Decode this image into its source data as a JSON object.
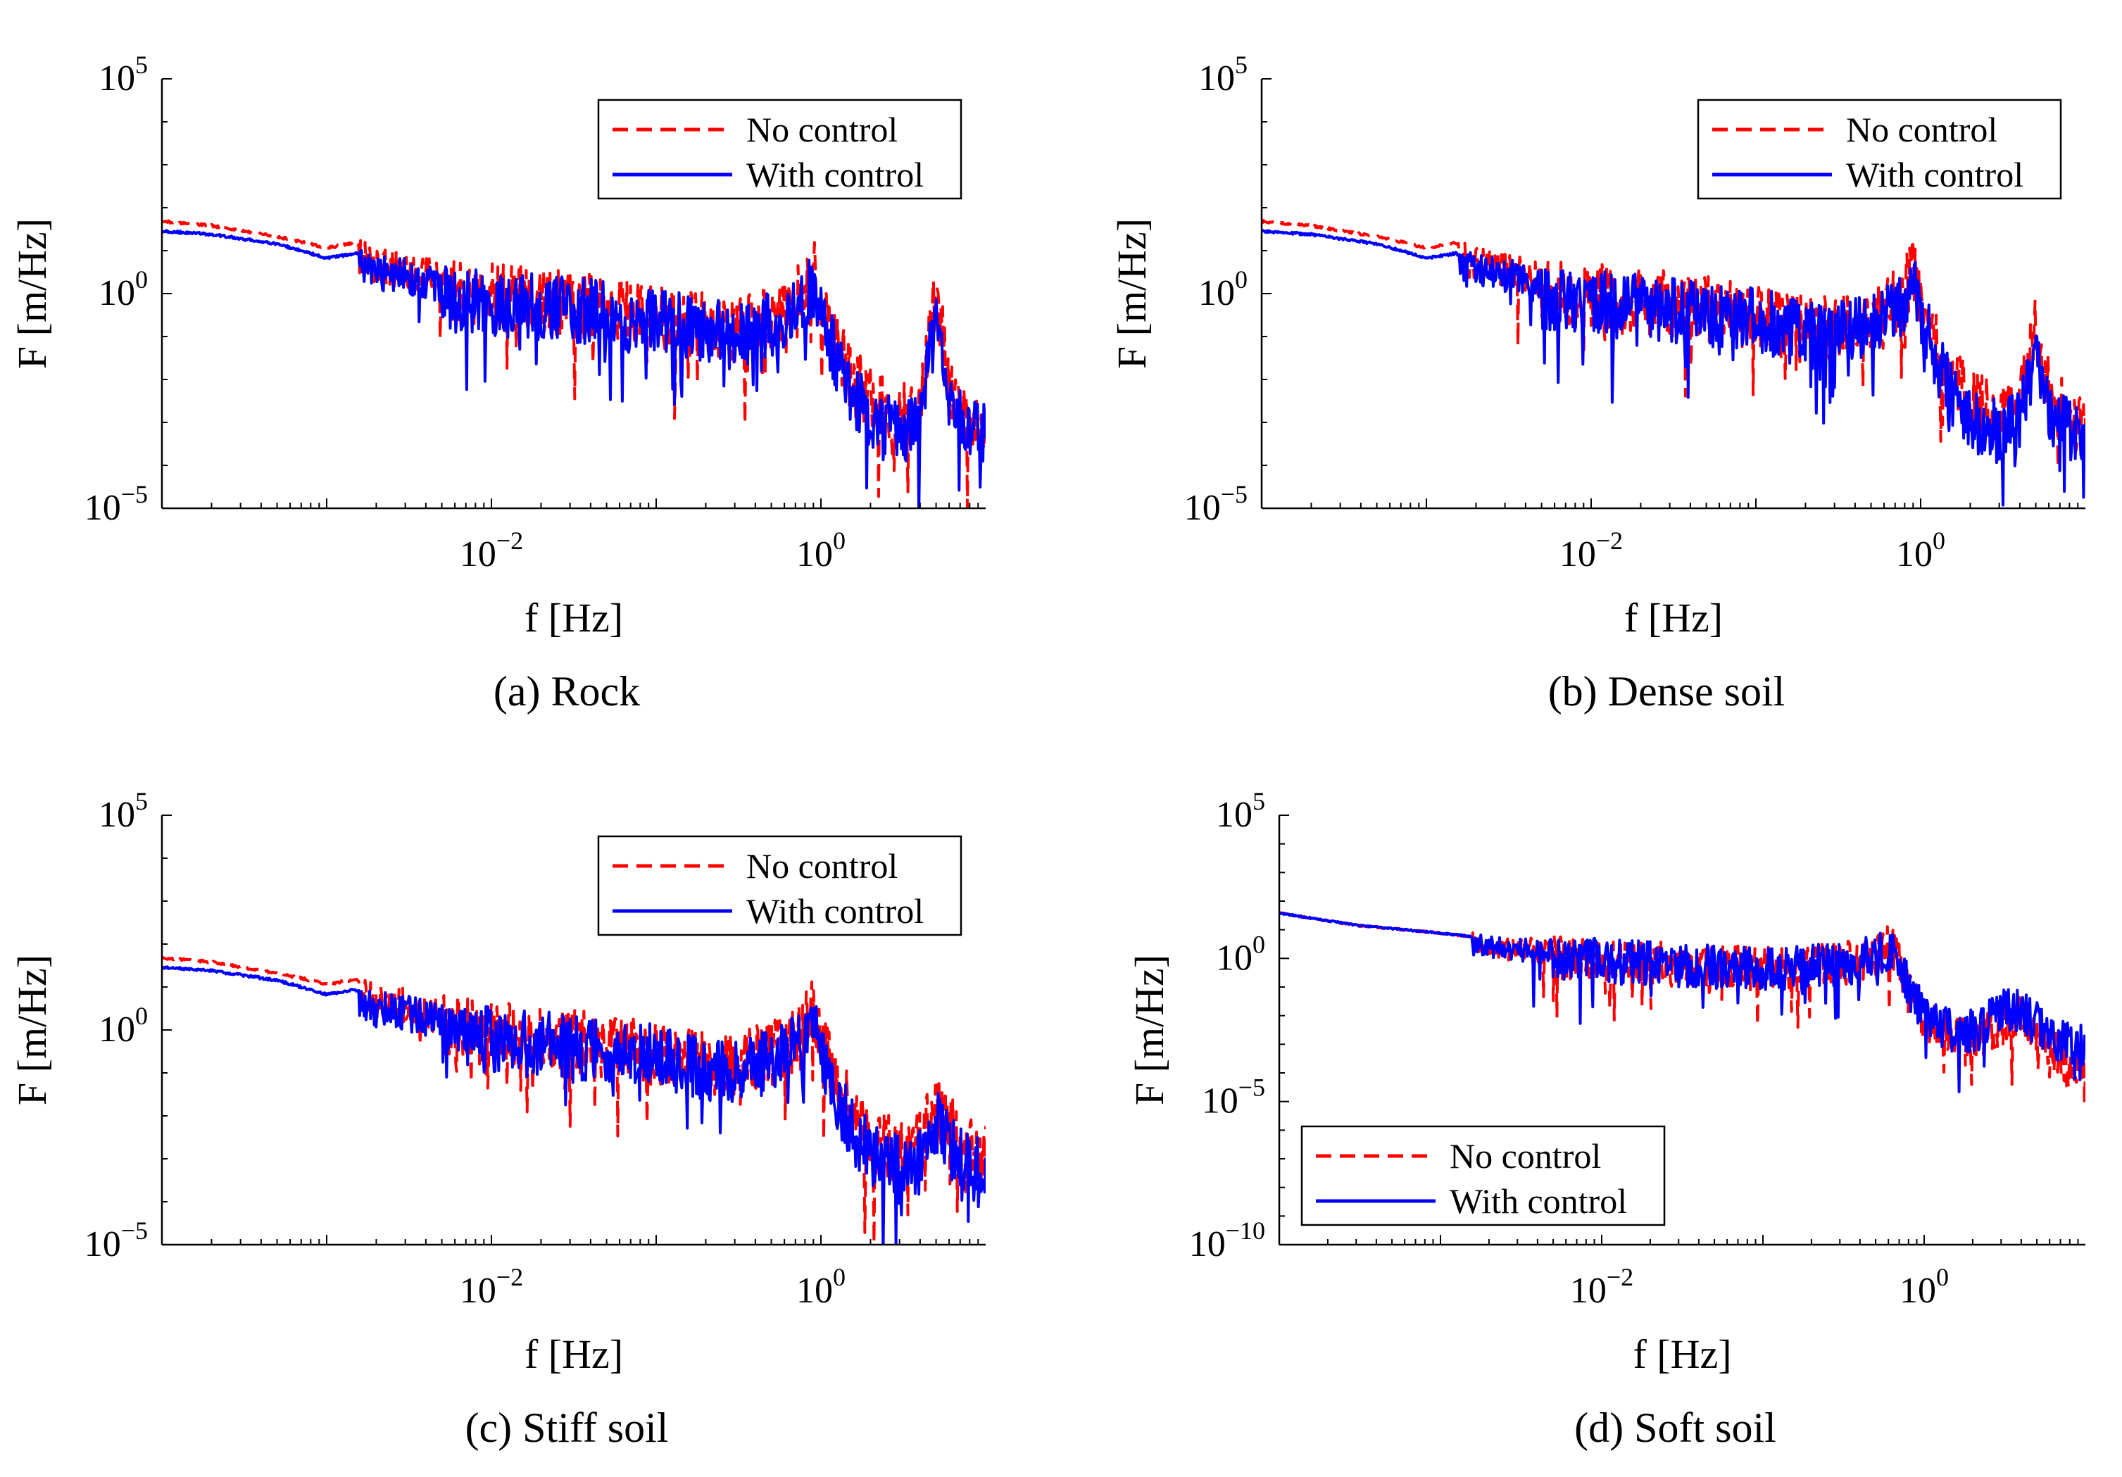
{
  "figure": {
    "panels": [
      {
        "caption": "(a) Rock"
      },
      {
        "caption": "(b) Dense soil"
      },
      {
        "caption": "(c) Stiff soil"
      },
      {
        "caption": "(d) Soft soil"
      }
    ]
  },
  "colors": {
    "no_control": "#ff0000",
    "with_control": "#0000ff",
    "axis": "#000000"
  },
  "chart_data": [
    {
      "type": "line",
      "title": "(a) Rock",
      "xlabel": "f [Hz]",
      "ylabel": "F [m/Hz]",
      "xscale": "log",
      "yscale": "log",
      "xlim": [
        0.0001,
        10
      ],
      "ylim": [
        1e-05,
        100000
      ],
      "xticks": [
        {
          "exp": "-2",
          "value": 0.01
        },
        {
          "exp": "0",
          "value": 1
        }
      ],
      "yticks": [
        {
          "exp": "-5",
          "value": 1e-05
        },
        {
          "exp": "0",
          "value": 1
        },
        {
          "exp": "5",
          "value": 100000
        }
      ],
      "legend": {
        "position": "top-right",
        "entries": [
          "No control",
          "With control"
        ]
      },
      "series": [
        {
          "name": "No control",
          "style": "dashed",
          "x": [
            0.0001,
            0.0002,
            0.0005,
            0.0008,
            0.001,
            0.0015,
            0.002,
            0.003,
            0.005,
            0.01,
            0.03,
            0.1,
            0.3,
            0.6,
            0.8,
            0.9,
            1.0,
            1.2,
            1.5,
            2,
            3,
            4,
            5,
            6,
            8,
            10
          ],
          "y": [
            50,
            40,
            22,
            15,
            12,
            16,
            9,
            7,
            4,
            3,
            2,
            1.0,
            0.5,
            1.2,
            4,
            12,
            2,
            0.3,
            0.05,
            0.01,
            0.005,
            0.008,
            5,
            0.02,
            0.005,
            0.004
          ]
        },
        {
          "name": "With control",
          "style": "solid",
          "x": [
            0.0001,
            0.0002,
            0.0005,
            0.0008,
            0.001,
            0.0015,
            0.002,
            0.003,
            0.005,
            0.01,
            0.03,
            0.1,
            0.3,
            0.6,
            0.8,
            0.9,
            1.0,
            1.2,
            1.5,
            2,
            3,
            4,
            5,
            6,
            8,
            10
          ],
          "y": [
            30,
            25,
            15,
            9,
            7,
            9,
            6,
            5,
            3,
            2,
            1.5,
            0.8,
            0.35,
            0.8,
            2.5,
            6,
            1.2,
            0.15,
            0.02,
            0.004,
            0.002,
            0.003,
            1.5,
            0.006,
            0.002,
            0.002
          ]
        }
      ]
    },
    {
      "type": "line",
      "title": "(b) Dense soil",
      "xlabel": "f [Hz]",
      "ylabel": "F [m/Hz]",
      "xscale": "log",
      "yscale": "log",
      "xlim": [
        0.0001,
        10
      ],
      "ylim": [
        1e-05,
        100000
      ],
      "xticks": [
        {
          "exp": "-2",
          "value": 0.01
        },
        {
          "exp": "0",
          "value": 1
        }
      ],
      "yticks": [
        {
          "exp": "-5",
          "value": 1e-05
        },
        {
          "exp": "0",
          "value": 1
        },
        {
          "exp": "5",
          "value": 100000
        }
      ],
      "legend": {
        "position": "top-right",
        "entries": [
          "No control",
          "With control"
        ]
      },
      "series": [
        {
          "name": "No control",
          "style": "dashed",
          "x": [
            0.0001,
            0.0002,
            0.0005,
            0.0008,
            0.001,
            0.0015,
            0.002,
            0.003,
            0.005,
            0.01,
            0.03,
            0.1,
            0.3,
            0.6,
            0.8,
            0.9,
            1.0,
            1.2,
            1.5,
            2,
            3,
            4,
            5,
            6,
            8,
            10
          ],
          "y": [
            50,
            40,
            22,
            15,
            12,
            16,
            9,
            7,
            4,
            3,
            2,
            1.0,
            0.5,
            1.2,
            4,
            12,
            2,
            0.3,
            0.05,
            0.01,
            0.005,
            0.008,
            0.5,
            0.02,
            0.005,
            0.004
          ]
        },
        {
          "name": "With control",
          "style": "solid",
          "x": [
            0.0001,
            0.0002,
            0.0005,
            0.0008,
            0.001,
            0.0015,
            0.002,
            0.003,
            0.005,
            0.01,
            0.03,
            0.1,
            0.3,
            0.6,
            0.8,
            0.9,
            1.0,
            1.2,
            1.5,
            2,
            3,
            4,
            5,
            6,
            8,
            10
          ],
          "y": [
            30,
            25,
            15,
            9,
            7,
            9,
            6,
            5,
            3,
            2,
            1.5,
            0.8,
            0.35,
            0.8,
            2.5,
            6,
            1.2,
            0.15,
            0.02,
            0.004,
            0.002,
            0.003,
            0.2,
            0.006,
            0.002,
            0.002
          ]
        }
      ]
    },
    {
      "type": "line",
      "title": "(c) Stiff soil",
      "xlabel": "f [Hz]",
      "ylabel": "F [m/Hz]",
      "xscale": "log",
      "yscale": "log",
      "xlim": [
        0.0001,
        10
      ],
      "ylim": [
        1e-05,
        100000
      ],
      "xticks": [
        {
          "exp": "-2",
          "value": 0.01
        },
        {
          "exp": "0",
          "value": 1
        }
      ],
      "yticks": [
        {
          "exp": "-5",
          "value": 1e-05
        },
        {
          "exp": "0",
          "value": 1
        },
        {
          "exp": "5",
          "value": 100000
        }
      ],
      "legend": {
        "position": "top-right",
        "entries": [
          "No control",
          "With control"
        ]
      },
      "series": [
        {
          "name": "No control",
          "style": "dashed",
          "x": [
            0.0001,
            0.0002,
            0.0005,
            0.0008,
            0.001,
            0.0015,
            0.002,
            0.003,
            0.005,
            0.01,
            0.03,
            0.1,
            0.3,
            0.6,
            0.8,
            0.9,
            1.0,
            1.2,
            1.5,
            2,
            3,
            4,
            5,
            6,
            8,
            10
          ],
          "y": [
            50,
            40,
            22,
            15,
            12,
            16,
            9,
            7,
            4,
            3,
            2,
            1.0,
            0.5,
            1.2,
            4,
            12,
            2,
            0.3,
            0.05,
            0.01,
            0.005,
            0.008,
            0.06,
            0.02,
            0.005,
            0.004
          ]
        },
        {
          "name": "With control",
          "style": "solid",
          "x": [
            0.0001,
            0.0002,
            0.0005,
            0.0008,
            0.001,
            0.0015,
            0.002,
            0.003,
            0.005,
            0.01,
            0.03,
            0.1,
            0.3,
            0.6,
            0.8,
            0.9,
            1.0,
            1.2,
            1.5,
            2,
            3,
            4,
            5,
            6,
            8,
            10
          ],
          "y": [
            30,
            25,
            15,
            9,
            7,
            9,
            6,
            5,
            3,
            2,
            1.5,
            0.8,
            0.35,
            0.8,
            2.5,
            6,
            1.2,
            0.15,
            0.02,
            0.004,
            0.002,
            0.003,
            0.03,
            0.006,
            0.002,
            0.002
          ]
        }
      ]
    },
    {
      "type": "line",
      "title": "(d) Soft soil",
      "xlabel": "f [Hz]",
      "ylabel": "F [m/Hz]",
      "xscale": "log",
      "yscale": "log",
      "xlim": [
        0.0001,
        10
      ],
      "ylim": [
        1e-10,
        100000
      ],
      "xticks": [
        {
          "exp": "-2",
          "value": 0.01
        },
        {
          "exp": "0",
          "value": 1
        }
      ],
      "yticks": [
        {
          "exp": "-10",
          "value": 1e-10
        },
        {
          "exp": "-5",
          "value": 1e-05
        },
        {
          "exp": "0",
          "value": 1
        },
        {
          "exp": "5",
          "value": 100000
        }
      ],
      "legend": {
        "position": "bottom-left",
        "entries": [
          "No control",
          "With control"
        ]
      },
      "series": [
        {
          "name": "No control",
          "style": "dashed",
          "x": [
            0.0001,
            0.0003,
            0.001,
            0.003,
            0.01,
            0.03,
            0.1,
            0.3,
            0.5,
            0.6,
            0.7,
            1.0,
            1.5,
            2,
            3,
            4,
            6,
            8,
            10
          ],
          "y": [
            40,
            15,
            8,
            4,
            3,
            2,
            1.5,
            2,
            5,
            12,
            2,
            0.02,
            0.005,
            0.005,
            0.02,
            0.03,
            0.003,
            0.0005,
            0.001
          ]
        },
        {
          "name": "With control",
          "style": "solid",
          "x": [
            0.0001,
            0.0003,
            0.001,
            0.003,
            0.01,
            0.03,
            0.1,
            0.3,
            0.5,
            0.6,
            0.7,
            1.0,
            1.5,
            2,
            3,
            4,
            6,
            8,
            10
          ],
          "y": [
            40,
            15,
            8,
            4,
            3,
            2,
            1.5,
            2,
            4,
            8,
            1.5,
            0.03,
            0.01,
            0.01,
            0.05,
            0.06,
            0.008,
            0.003,
            0.004
          ]
        }
      ]
    }
  ]
}
